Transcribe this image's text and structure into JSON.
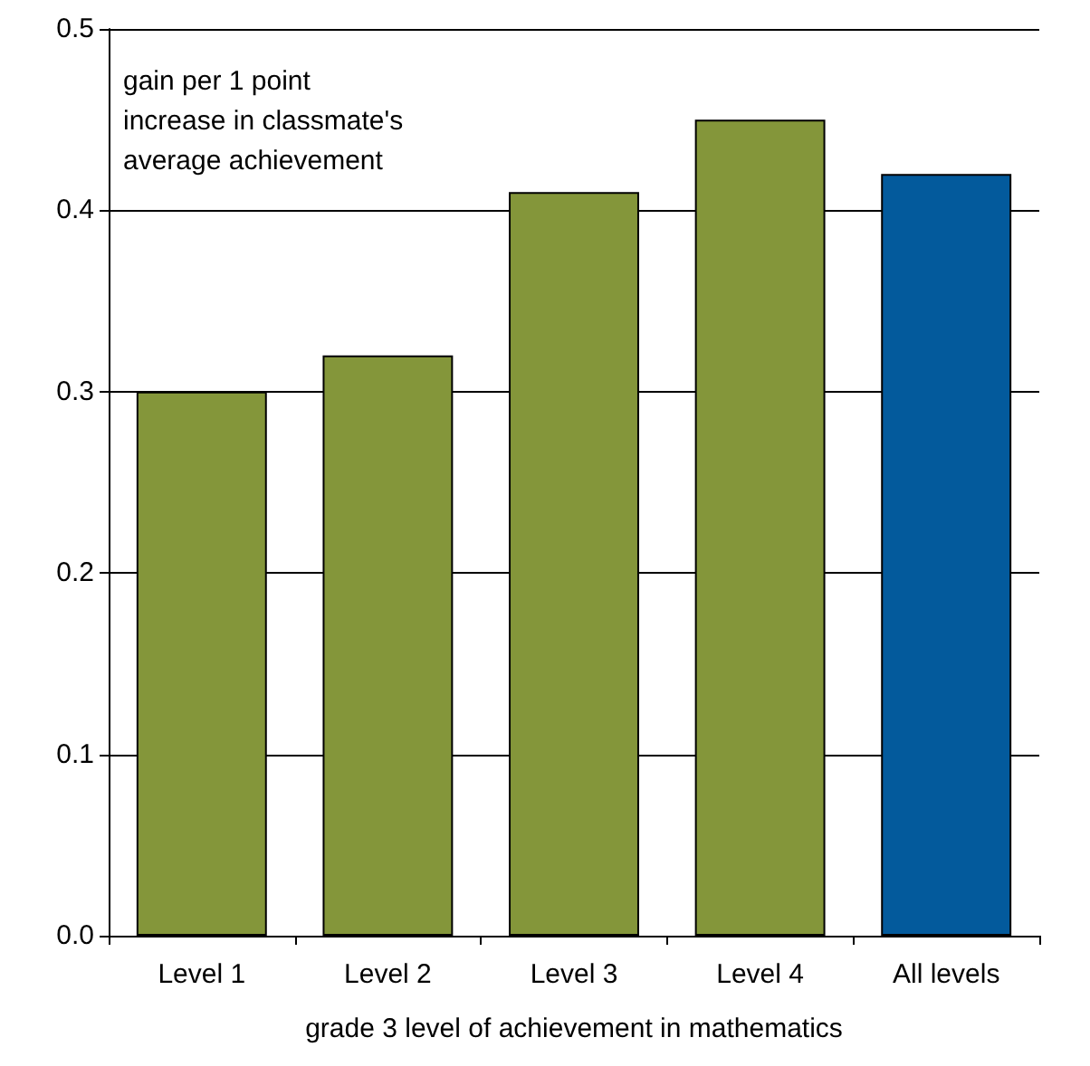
{
  "chart_data": {
    "type": "bar",
    "ylabel": "gain per 1 point\nincrease in classmate's\naverage achievement",
    "xlabel": "grade 3 level of achievement in mathematics",
    "categories": [
      "Level 1",
      "Level 2",
      "Level 3",
      "Level 4",
      "All levels"
    ],
    "values": [
      0.3,
      0.32,
      0.41,
      0.45,
      0.42
    ],
    "colors": [
      "#84963a",
      "#84963a",
      "#84963a",
      "#84963a",
      "#035a9c"
    ],
    "ylim": [
      0,
      0.5
    ],
    "yticks": [
      {
        "value": 0,
        "label": "0.0"
      },
      {
        "value": 0.1,
        "label": "0.1"
      },
      {
        "value": 0.2,
        "label": "0.2"
      },
      {
        "value": 0.3,
        "label": "0.3"
      },
      {
        "value": 0.4,
        "label": "0.4"
      },
      {
        "value": 0.5,
        "label": "0.5"
      }
    ],
    "grid": "y"
  }
}
